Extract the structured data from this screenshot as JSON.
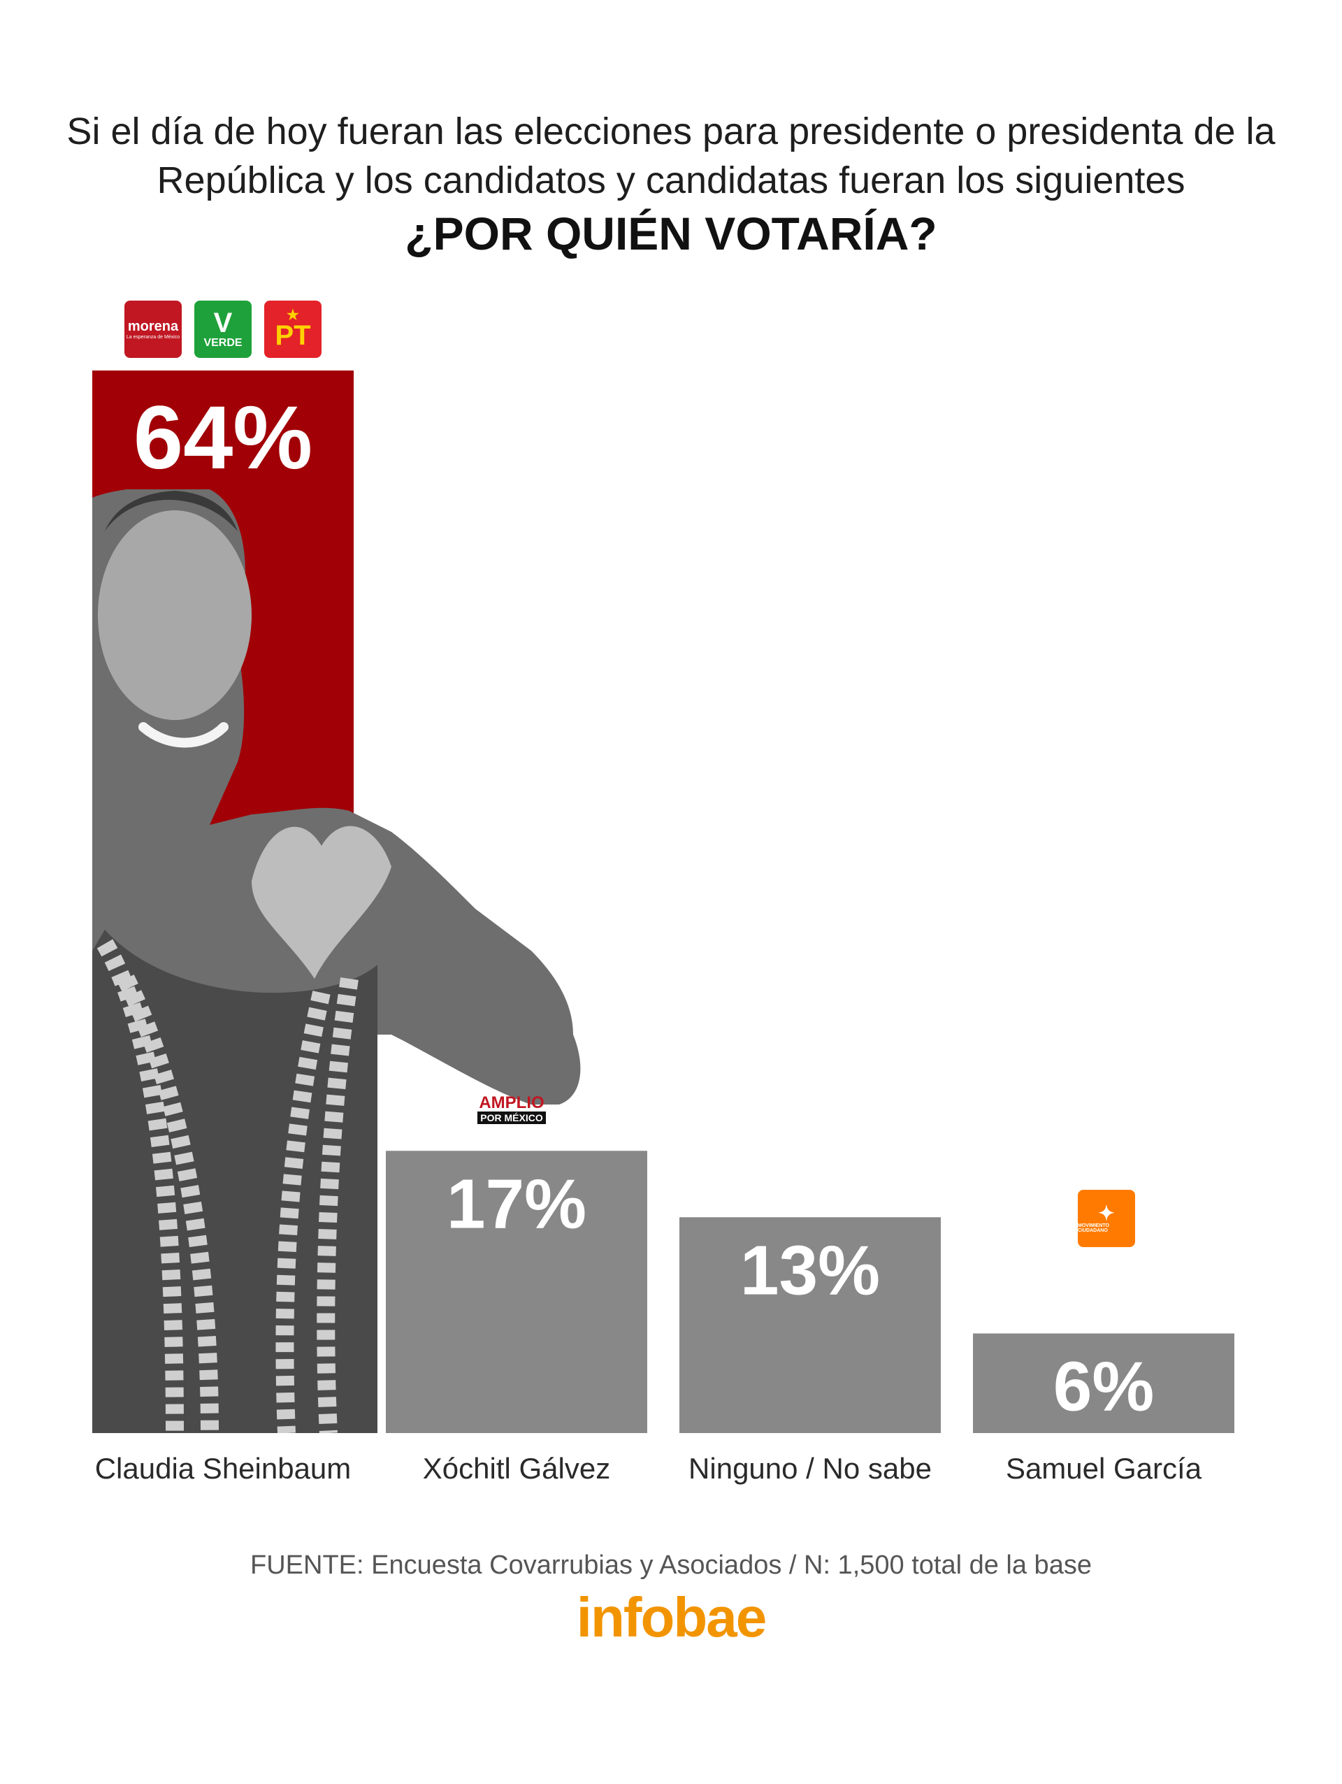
{
  "header": {
    "line1": "Si el día de hoy fueran las elecciones para presidente o presidenta de la",
    "line2": "República y los candidatos y candidatas fueran los siguientes",
    "question": "¿POR QUIÉN VOTARÍA?"
  },
  "logos": {
    "morena_name": "morena",
    "morena_tagline": "La esperanza de México",
    "verde_mark": "V",
    "verde_name": "VERDE",
    "pt_star": "★",
    "pt_name": "PT",
    "fam_top": "AMPLIO",
    "fam_bottom": "POR MÉXICO",
    "mc_mark": "✦",
    "mc_name": "MOVIMIENTO CIUDADANO"
  },
  "chart_data": {
    "type": "bar",
    "title": "¿POR QUIÉN VOTARÍA?",
    "categories": [
      "Claudia Sheinbaum",
      "Xóchitl Gálvez",
      "Ninguno / No sabe",
      "Samuel García"
    ],
    "values": [
      64,
      17,
      13,
      6
    ],
    "value_labels": [
      "64%",
      "17%",
      "13%",
      "6%"
    ],
    "unit": "%",
    "bar_colors": [
      "#a10006",
      "#888888",
      "#888888",
      "#888888"
    ],
    "ylim": [
      0,
      64
    ],
    "grid": false,
    "legend": "none"
  },
  "footer": {
    "source": "FUENTE: Encuesta Covarrubias y Asociados / N: 1,500 total de la base",
    "brand": "infobae"
  }
}
